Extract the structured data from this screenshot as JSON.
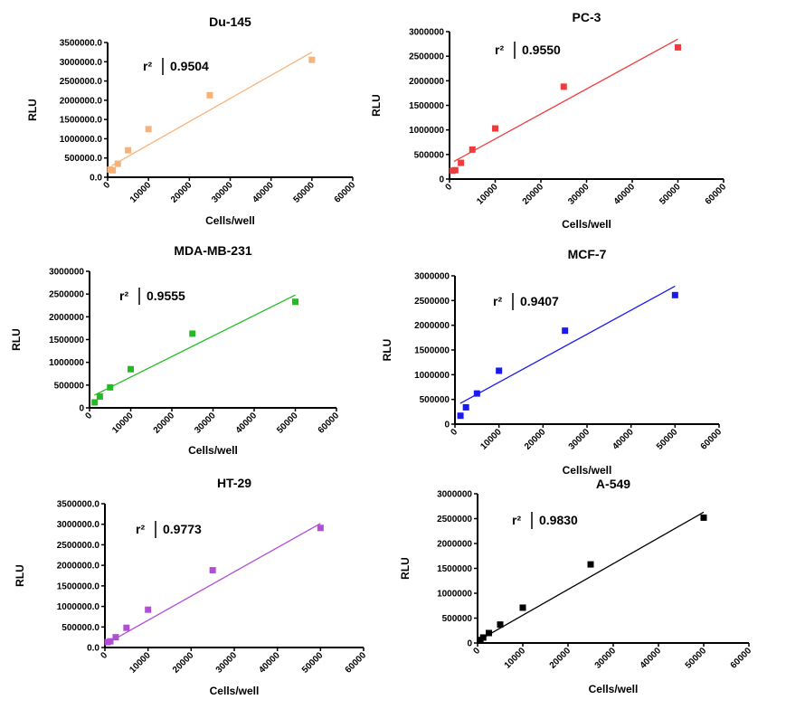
{
  "chart_data": [
    {
      "type": "scatter",
      "title": "Du-145",
      "xlabel": "Cells/well",
      "ylabel": "RLU",
      "xlim": [
        0,
        60000
      ],
      "ylim": [
        0,
        3500000
      ],
      "x_ticks": [
        "0",
        "10000",
        "20000",
        "30000",
        "40000",
        "50000",
        "60000"
      ],
      "y_ticks": [
        "0.0",
        "500000.0",
        "1000000.0",
        "1500000.0",
        "2000000.0",
        "2500000.0",
        "3000000.0",
        "3500000.0"
      ],
      "r2_label": "r²",
      "r2_value": "0.9504",
      "color": "#f7b27a",
      "points": [
        {
          "x": 625,
          "y": 200000
        },
        {
          "x": 1250,
          "y": 180000
        },
        {
          "x": 2500,
          "y": 350000
        },
        {
          "x": 5000,
          "y": 700000
        },
        {
          "x": 10000,
          "y": 1250000
        },
        {
          "x": 25000,
          "y": 2130000
        },
        {
          "x": 50000,
          "y": 3050000
        }
      ],
      "fit": {
        "x": [
          1000,
          50000
        ],
        "y": [
          300000,
          3250000
        ]
      }
    },
    {
      "type": "scatter",
      "title": "PC-3",
      "xlabel": "Cells/well",
      "ylabel": "RLU",
      "xlim": [
        0,
        60000
      ],
      "ylim": [
        0,
        3000000
      ],
      "x_ticks": [
        "0",
        "10000",
        "20000",
        "30000",
        "40000",
        "50000",
        "60000"
      ],
      "y_ticks": [
        "0",
        "500000",
        "1000000",
        "1500000",
        "2000000",
        "2500000",
        "3000000"
      ],
      "r2_label": "r²",
      "r2_value": "0.9550",
      "color": "#ee3b3b",
      "points": [
        {
          "x": 625,
          "y": 170000
        },
        {
          "x": 1250,
          "y": 180000
        },
        {
          "x": 2500,
          "y": 330000
        },
        {
          "x": 5000,
          "y": 600000
        },
        {
          "x": 10000,
          "y": 1030000
        },
        {
          "x": 25000,
          "y": 1880000
        },
        {
          "x": 50000,
          "y": 2680000
        }
      ],
      "fit": {
        "x": [
          1000,
          50000
        ],
        "y": [
          360000,
          2850000
        ]
      }
    },
    {
      "type": "scatter",
      "title": "MDA-MB-231",
      "xlabel": "Cells/well",
      "ylabel": "RLU",
      "xlim": [
        0,
        60000
      ],
      "ylim": [
        0,
        3000000
      ],
      "x_ticks": [
        "0",
        "10000",
        "20000",
        "30000",
        "40000",
        "50000",
        "60000"
      ],
      "y_ticks": [
        "0",
        "500000",
        "1000000",
        "1500000",
        "2000000",
        "2500000",
        "3000000"
      ],
      "r2_label": "r²",
      "r2_value": "0.9555",
      "color": "#22bb22",
      "points": [
        {
          "x": 1250,
          "y": 120000
        },
        {
          "x": 2500,
          "y": 250000
        },
        {
          "x": 5000,
          "y": 450000
        },
        {
          "x": 10000,
          "y": 850000
        },
        {
          "x": 25000,
          "y": 1630000
        },
        {
          "x": 50000,
          "y": 2330000
        }
      ],
      "fit": {
        "x": [
          1200,
          50000
        ],
        "y": [
          280000,
          2480000
        ]
      }
    },
    {
      "type": "scatter",
      "title": "MCF-7",
      "xlabel": "Cells/well",
      "ylabel": "RLU",
      "xlim": [
        0,
        60000
      ],
      "ylim": [
        0,
        3000000
      ],
      "x_ticks": [
        "0",
        "10000",
        "20000",
        "30000",
        "40000",
        "50000",
        "60000"
      ],
      "y_ticks": [
        "0",
        "500000",
        "1000000",
        "1500000",
        "2000000",
        "2500000",
        "3000000"
      ],
      "r2_label": "r²",
      "r2_value": "0.9407",
      "color": "#1a1aee",
      "points": [
        {
          "x": 1250,
          "y": 170000
        },
        {
          "x": 2500,
          "y": 340000
        },
        {
          "x": 5000,
          "y": 620000
        },
        {
          "x": 10000,
          "y": 1080000
        },
        {
          "x": 25000,
          "y": 1890000
        },
        {
          "x": 50000,
          "y": 2610000
        }
      ],
      "fit": {
        "x": [
          1200,
          50000
        ],
        "y": [
          420000,
          2790000
        ]
      }
    },
    {
      "type": "scatter",
      "title": "HT-29",
      "xlabel": "Cells/well",
      "ylabel": "RLU",
      "xlim": [
        0,
        60000
      ],
      "ylim": [
        0,
        3500000
      ],
      "x_ticks": [
        "0",
        "10000",
        "20000",
        "30000",
        "40000",
        "50000",
        "60000"
      ],
      "y_ticks": [
        "0.0",
        "500000.0",
        "1000000.0",
        "1500000.0",
        "2000000.0",
        "2500000.0",
        "3000000.0",
        "3500000.0"
      ],
      "r2_label": "r²",
      "r2_value": "0.9773",
      "color": "#b04fd6",
      "points": [
        {
          "x": 625,
          "y": 130000
        },
        {
          "x": 1250,
          "y": 150000
        },
        {
          "x": 2500,
          "y": 250000
        },
        {
          "x": 5000,
          "y": 480000
        },
        {
          "x": 10000,
          "y": 920000
        },
        {
          "x": 25000,
          "y": 1880000
        },
        {
          "x": 50000,
          "y": 2910000
        }
      ],
      "fit": {
        "x": [
          800,
          50000
        ],
        "y": [
          120000,
          3020000
        ]
      }
    },
    {
      "type": "scatter",
      "title": "A-549",
      "xlabel": "Cells/well",
      "ylabel": "RLU",
      "xlim": [
        0,
        60000
      ],
      "ylim": [
        0,
        3000000
      ],
      "x_ticks": [
        "0",
        "10000",
        "20000",
        "30000",
        "40000",
        "50000",
        "60000"
      ],
      "y_ticks": [
        "0",
        "500000",
        "1000000",
        "1500000",
        "2000000",
        "2500000",
        "3000000"
      ],
      "r2_label": "r²",
      "r2_value": "0.9830",
      "color": "#000000",
      "points": [
        {
          "x": 625,
          "y": 60000
        },
        {
          "x": 1250,
          "y": 110000
        },
        {
          "x": 2500,
          "y": 200000
        },
        {
          "x": 5000,
          "y": 370000
        },
        {
          "x": 10000,
          "y": 710000
        },
        {
          "x": 25000,
          "y": 1580000
        },
        {
          "x": 50000,
          "y": 2520000
        }
      ],
      "fit": {
        "x": [
          0,
          50000
        ],
        "y": [
          40000,
          2630000
        ]
      }
    }
  ]
}
